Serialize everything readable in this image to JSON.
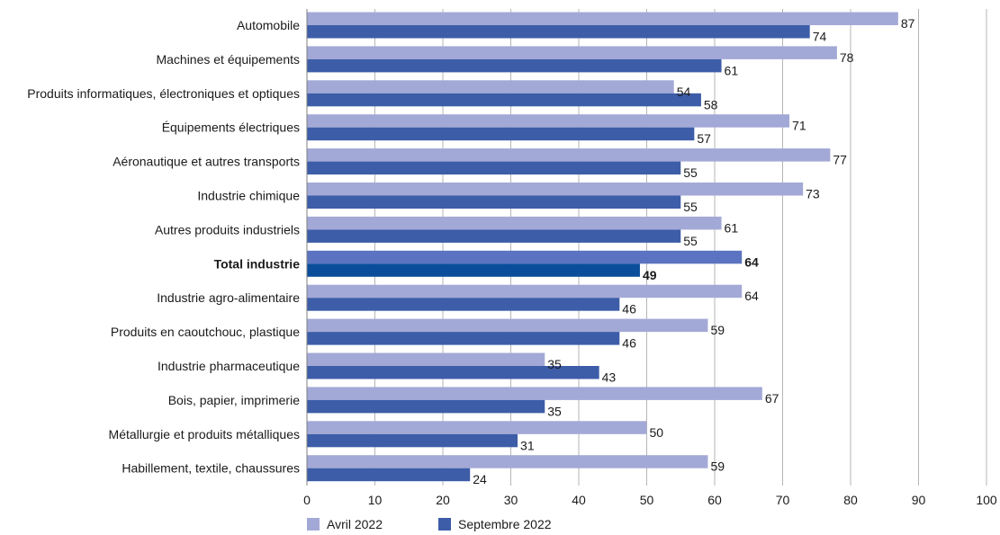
{
  "chart_data": {
    "type": "bar",
    "orientation": "horizontal",
    "categories": [
      "Automobile",
      "Machines et équipements",
      "Produits informatiques, électroniques et optiques",
      "Équipements électriques",
      "Aéronautique et autres transports",
      "Industrie chimique",
      "Autres produits industriels",
      "Total industrie",
      "Industrie agro-alimentaire",
      "Produits en caoutchouc, plastique",
      "Industrie pharmaceutique",
      "Bois, papier, imprimerie",
      "Métallurgie et produits métalliques",
      "Habillement, textile, chaussures"
    ],
    "highlight_category": "Total industrie",
    "series": [
      {
        "name": "Avril 2022",
        "color": "#a3a9d6",
        "highlight_color": "#5b73c0",
        "values": [
          87,
          78,
          54,
          71,
          77,
          73,
          61,
          64,
          64,
          59,
          35,
          67,
          50,
          59
        ]
      },
      {
        "name": "Septembre 2022",
        "color": "#3d5da8",
        "highlight_color": "#0a4e9b",
        "values": [
          74,
          61,
          58,
          57,
          55,
          55,
          55,
          49,
          46,
          46,
          43,
          35,
          31,
          24
        ]
      }
    ],
    "xlim": [
      0,
      100
    ],
    "xticks": [
      "0",
      "10",
      "20",
      "30",
      "40",
      "50",
      "60",
      "70",
      "80",
      "90",
      "100"
    ],
    "grid": true,
    "legend_position": "bottom-left"
  }
}
